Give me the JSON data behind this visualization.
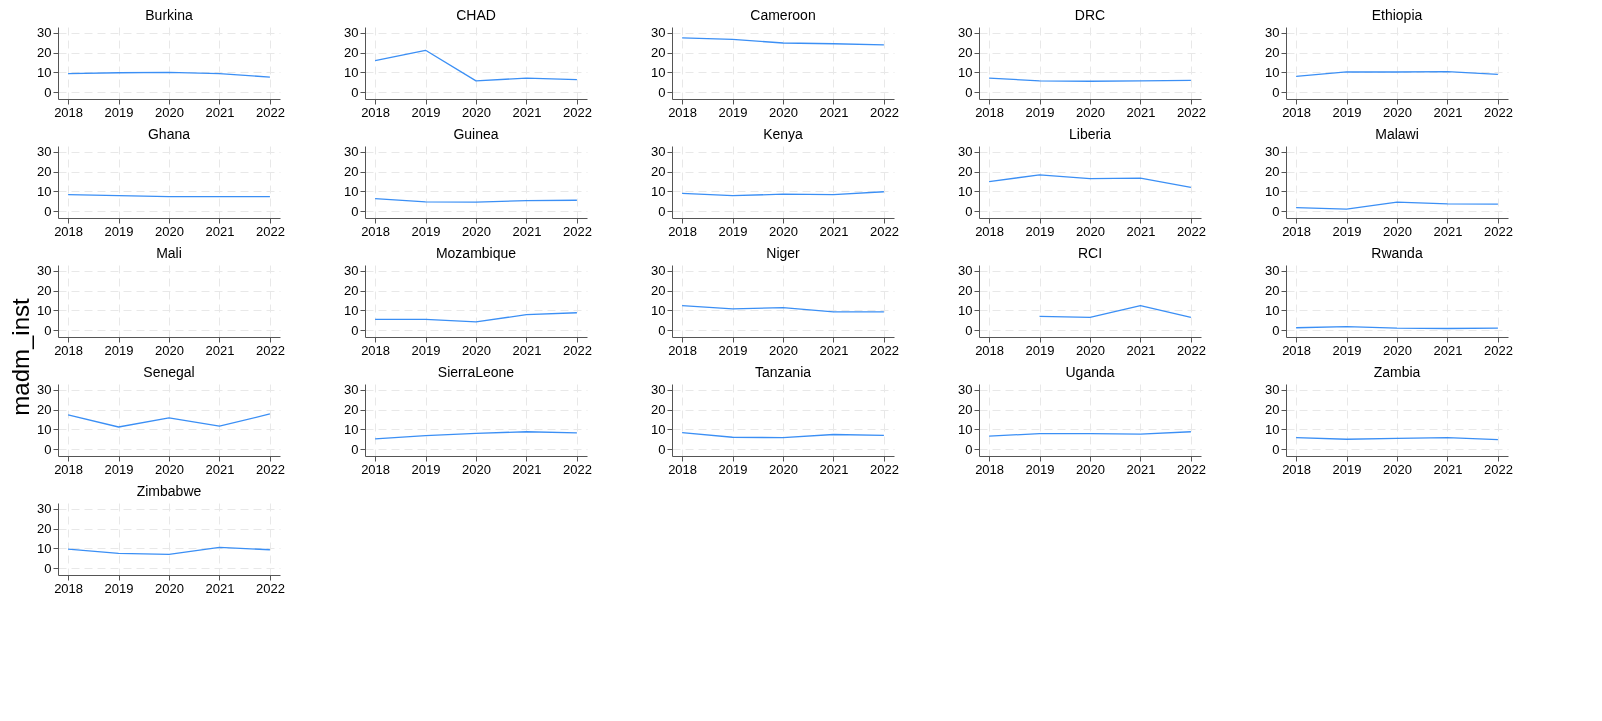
{
  "chart_data": [
    {
      "type": "line",
      "title": "Burkina",
      "x": [
        2018,
        2019,
        2020,
        2021,
        2022
      ],
      "values": [
        9.4,
        9.8,
        10.0,
        9.4,
        7.6
      ],
      "color": "#3b8ff5",
      "xlim": [
        2017.8,
        2022.2
      ],
      "ylim": [
        -3.5,
        33
      ],
      "xticks": [
        2018,
        2019,
        2020,
        2021,
        2022
      ],
      "yticks": [
        0,
        10,
        20,
        30
      ],
      "grid": true
    },
    {
      "type": "line",
      "title": "CHAD",
      "x": [
        2018,
        2019,
        2020,
        2021,
        2022
      ],
      "values": [
        15.9,
        21.2,
        5.7,
        7.1,
        6.3
      ],
      "color": "#3b8ff5",
      "xlim": [
        2017.8,
        2022.2
      ],
      "ylim": [
        -3.5,
        33
      ],
      "xticks": [
        2018,
        2019,
        2020,
        2021,
        2022
      ],
      "yticks": [
        0,
        10,
        20,
        30
      ],
      "grid": true
    },
    {
      "type": "line",
      "title": "Cameroon",
      "x": [
        2018,
        2019,
        2020,
        2021,
        2022
      ],
      "values": [
        27.5,
        26.7,
        24.9,
        24.5,
        23.9
      ],
      "color": "#3b8ff5",
      "xlim": [
        2017.8,
        2022.2
      ],
      "ylim": [
        -3.5,
        33
      ],
      "xticks": [
        2018,
        2019,
        2020,
        2021,
        2022
      ],
      "yticks": [
        0,
        10,
        20,
        30
      ],
      "grid": true
    },
    {
      "type": "line",
      "title": "DRC",
      "x": [
        2018,
        2019,
        2020,
        2021,
        2022
      ],
      "values": [
        7.1,
        5.7,
        5.5,
        5.7,
        5.9
      ],
      "color": "#3b8ff5",
      "xlim": [
        2017.8,
        2022.2
      ],
      "ylim": [
        -3.5,
        33
      ],
      "xticks": [
        2018,
        2019,
        2020,
        2021,
        2022
      ],
      "yticks": [
        0,
        10,
        20,
        30
      ],
      "grid": true
    },
    {
      "type": "line",
      "title": "Ethiopia",
      "x": [
        2018,
        2019,
        2020,
        2021,
        2022
      ],
      "values": [
        8.0,
        10.2,
        10.2,
        10.4,
        9.0
      ],
      "color": "#3b8ff5",
      "xlim": [
        2017.8,
        2022.2
      ],
      "ylim": [
        -3.5,
        33
      ],
      "xticks": [
        2018,
        2019,
        2020,
        2021,
        2022
      ],
      "yticks": [
        0,
        10,
        20,
        30
      ],
      "grid": true
    },
    {
      "type": "line",
      "title": "Ghana",
      "x": [
        2018,
        2019,
        2020,
        2021,
        2022
      ],
      "values": [
        8.4,
        7.8,
        7.3,
        7.3,
        7.3
      ],
      "color": "#3b8ff5",
      "xlim": [
        2017.8,
        2022.2
      ],
      "ylim": [
        -3.5,
        33
      ],
      "xticks": [
        2018,
        2019,
        2020,
        2021,
        2022
      ],
      "yticks": [
        0,
        10,
        20,
        30
      ],
      "grid": true
    },
    {
      "type": "line",
      "title": "Guinea",
      "x": [
        2018,
        2019,
        2020,
        2021,
        2022
      ],
      "values": [
        6.3,
        4.7,
        4.5,
        5.3,
        5.5
      ],
      "color": "#3b8ff5",
      "xlim": [
        2017.8,
        2022.2
      ],
      "ylim": [
        -3.5,
        33
      ],
      "xticks": [
        2018,
        2019,
        2020,
        2021,
        2022
      ],
      "yticks": [
        0,
        10,
        20,
        30
      ],
      "grid": true
    },
    {
      "type": "line",
      "title": "Kenya",
      "x": [
        2018,
        2019,
        2020,
        2021,
        2022
      ],
      "values": [
        9.0,
        7.8,
        8.6,
        8.4,
        9.8
      ],
      "color": "#3b8ff5",
      "xlim": [
        2017.8,
        2022.2
      ],
      "ylim": [
        -3.5,
        33
      ],
      "xticks": [
        2018,
        2019,
        2020,
        2021,
        2022
      ],
      "yticks": [
        0,
        10,
        20,
        30
      ],
      "grid": true
    },
    {
      "type": "line",
      "title": "Liberia",
      "x": [
        2018,
        2019,
        2020,
        2021,
        2022
      ],
      "values": [
        14.9,
        18.4,
        16.5,
        16.7,
        12.0
      ],
      "color": "#3b8ff5",
      "xlim": [
        2017.8,
        2022.2
      ],
      "ylim": [
        -3.5,
        33
      ],
      "xticks": [
        2018,
        2019,
        2020,
        2021,
        2022
      ],
      "yticks": [
        0,
        10,
        20,
        30
      ],
      "grid": true
    },
    {
      "type": "line",
      "title": "Malawi",
      "x": [
        2018,
        2019,
        2020,
        2021,
        2022
      ],
      "values": [
        1.8,
        1.0,
        4.5,
        3.7,
        3.5
      ],
      "color": "#3b8ff5",
      "xlim": [
        2017.8,
        2022.2
      ],
      "ylim": [
        -3.5,
        33
      ],
      "xticks": [
        2018,
        2019,
        2020,
        2021,
        2022
      ],
      "yticks": [
        0,
        10,
        20,
        30
      ],
      "grid": true
    },
    {
      "type": "line",
      "title": "Mali",
      "ylabel": "madm_inst",
      "color": "#3b8ff5",
      "xlim": [
        2017.8,
        2022.2
      ],
      "ylim": [
        -3.5,
        33
      ],
      "xticks": [
        2018,
        2019,
        2020,
        2021,
        2022
      ],
      "yticks": [
        0,
        10,
        20,
        30
      ],
      "grid": true
    },
    {
      "type": "line",
      "title": "Mozambique",
      "x": [
        2018,
        2019,
        2020,
        2021,
        2022
      ],
      "values": [
        5.4,
        5.4,
        4.2,
        7.8,
        8.8
      ],
      "color": "#3b8ff5",
      "xlim": [
        2017.8,
        2022.2
      ],
      "ylim": [
        -3.5,
        33
      ],
      "xticks": [
        2018,
        2019,
        2020,
        2021,
        2022
      ],
      "yticks": [
        0,
        10,
        20,
        30
      ],
      "grid": true
    },
    {
      "type": "line",
      "title": "Niger",
      "x": [
        2018,
        2019,
        2020,
        2021,
        2022
      ],
      "values": [
        12.4,
        10.8,
        11.4,
        9.2,
        9.2
      ],
      "color": "#3b8ff5",
      "xlim": [
        2017.8,
        2022.2
      ],
      "ylim": [
        -3.5,
        33
      ],
      "xticks": [
        2018,
        2019,
        2020,
        2021,
        2022
      ],
      "yticks": [
        0,
        10,
        20,
        30
      ],
      "grid": true
    },
    {
      "type": "line",
      "title": "RCI",
      "x": [
        2019,
        2020,
        2021,
        2022
      ],
      "values": [
        7.0,
        6.4,
        12.4,
        6.4
      ],
      "color": "#3b8ff5",
      "xlim": [
        2017.8,
        2022.2
      ],
      "ylim": [
        -3.5,
        33
      ],
      "xticks": [
        2018,
        2019,
        2020,
        2021,
        2022
      ],
      "yticks": [
        0,
        10,
        20,
        30
      ],
      "grid": true
    },
    {
      "type": "line",
      "title": "Rwanda",
      "x": [
        2018,
        2019,
        2020,
        2021,
        2022
      ],
      "values": [
        1.2,
        1.8,
        1.0,
        0.8,
        1.0
      ],
      "color": "#3b8ff5",
      "xlim": [
        2017.8,
        2022.2
      ],
      "ylim": [
        -3.5,
        33
      ],
      "xticks": [
        2018,
        2019,
        2020,
        2021,
        2022
      ],
      "yticks": [
        0,
        10,
        20,
        30
      ],
      "grid": true
    },
    {
      "type": "line",
      "title": "Senegal",
      "x": [
        2018,
        2019,
        2020,
        2021,
        2022
      ],
      "values": [
        17.4,
        11.2,
        15.8,
        11.6,
        17.8
      ],
      "color": "#3b8ff5",
      "xlim": [
        2017.8,
        2022.2
      ],
      "ylim": [
        -3.5,
        33
      ],
      "xticks": [
        2018,
        2019,
        2020,
        2021,
        2022
      ],
      "yticks": [
        0,
        10,
        20,
        30
      ],
      "grid": true
    },
    {
      "type": "line",
      "title": "SierraLeone",
      "x": [
        2018,
        2019,
        2020,
        2021,
        2022
      ],
      "values": [
        5.2,
        6.8,
        8.0,
        8.8,
        8.2
      ],
      "color": "#3b8ff5",
      "xlim": [
        2017.8,
        2022.2
      ],
      "ylim": [
        -3.5,
        33
      ],
      "xticks": [
        2018,
        2019,
        2020,
        2021,
        2022
      ],
      "yticks": [
        0,
        10,
        20,
        30
      ],
      "grid": true
    },
    {
      "type": "line",
      "title": "Tanzania",
      "x": [
        2018,
        2019,
        2020,
        2021,
        2022
      ],
      "values": [
        8.4,
        6.0,
        5.8,
        7.4,
        7.0
      ],
      "color": "#3b8ff5",
      "xlim": [
        2017.8,
        2022.2
      ],
      "ylim": [
        -3.5,
        33
      ],
      "xticks": [
        2018,
        2019,
        2020,
        2021,
        2022
      ],
      "yticks": [
        0,
        10,
        20,
        30
      ],
      "grid": true
    },
    {
      "type": "line",
      "title": "Uganda",
      "x": [
        2018,
        2019,
        2020,
        2021,
        2022
      ],
      "values": [
        6.6,
        7.8,
        7.8,
        7.6,
        8.8
      ],
      "color": "#3b8ff5",
      "xlim": [
        2017.8,
        2022.2
      ],
      "ylim": [
        -3.5,
        33
      ],
      "xticks": [
        2018,
        2019,
        2020,
        2021,
        2022
      ],
      "yticks": [
        0,
        10,
        20,
        30
      ],
      "grid": true
    },
    {
      "type": "line",
      "title": "Zambia",
      "x": [
        2018,
        2019,
        2020,
        2021,
        2022
      ],
      "values": [
        5.8,
        5.0,
        5.4,
        5.8,
        4.8
      ],
      "color": "#3b8ff5",
      "xlim": [
        2017.8,
        2022.2
      ],
      "ylim": [
        -3.5,
        33
      ],
      "xticks": [
        2018,
        2019,
        2020,
        2021,
        2022
      ],
      "yticks": [
        0,
        10,
        20,
        30
      ],
      "grid": true
    },
    {
      "type": "line",
      "title": "Zimbabwe",
      "x": [
        2018,
        2019,
        2020,
        2021,
        2022
      ],
      "values": [
        9.6,
        7.5,
        7.0,
        10.5,
        9.3
      ],
      "color": "#3b8ff5",
      "xlim": [
        2017.8,
        2022.2
      ],
      "ylim": [
        -3.5,
        33
      ],
      "xticks": [
        2018,
        2019,
        2020,
        2021,
        2022
      ],
      "yticks": [
        0,
        10,
        20,
        30
      ],
      "grid": true
    }
  ]
}
